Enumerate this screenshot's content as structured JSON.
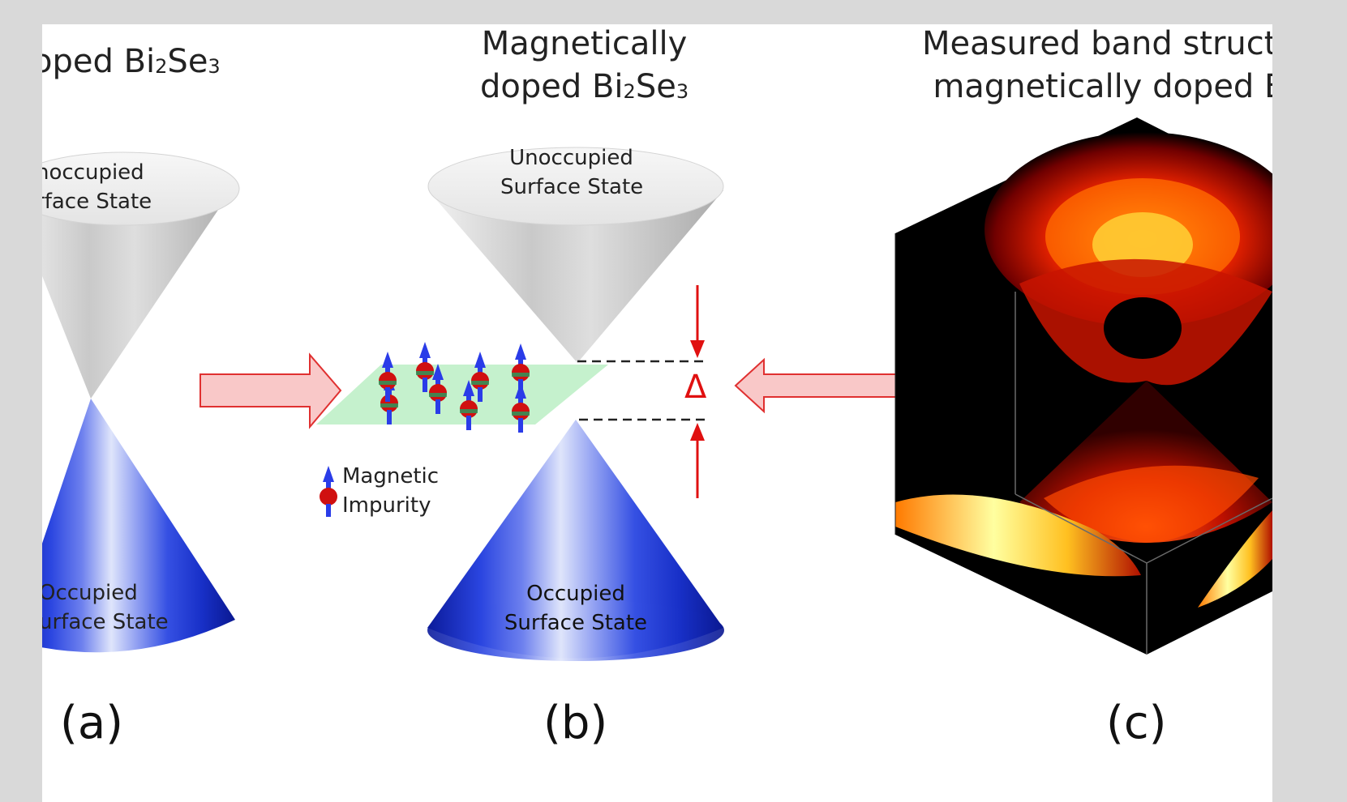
{
  "panel_a": {
    "title_visible": "oped Bi",
    "title_sub": "2",
    "title_tail": "Se",
    "title_sub2": "3",
    "upper_cone_line1": "noccupied",
    "upper_cone_line2": "rface State",
    "lower_cone_line1": "Occupied",
    "lower_cone_line2": "urface State",
    "panel_label": "(a)"
  },
  "panel_b": {
    "title_line1": "Magnetically",
    "title_line2_pre": "doped Bi",
    "title_sub": "2",
    "title_tail": "Se",
    "title_sub2": "3",
    "upper_cone_line1": "Unoccupied",
    "upper_cone_line2": "Surface State",
    "lower_cone_line1": "Occupied",
    "lower_cone_line2": "Surface State",
    "legend_line1": "Magnetic",
    "legend_line2": "Impurity",
    "gap_symbol": "Δ",
    "panel_label": "(b)"
  },
  "panel_c": {
    "title_line1": "Measured band structu",
    "title_line2": "magnetically doped B",
    "panel_label": "(c)"
  },
  "colors": {
    "background": "#d9d9d9",
    "arrow_fill": "#f9c8c8",
    "arrow_stroke": "#e03030",
    "gap_marker": "#e01010",
    "impurity_plane": "#bff0c8",
    "cone_blue": "#1a2fd0",
    "cone_gray": "#c8c8c8"
  }
}
